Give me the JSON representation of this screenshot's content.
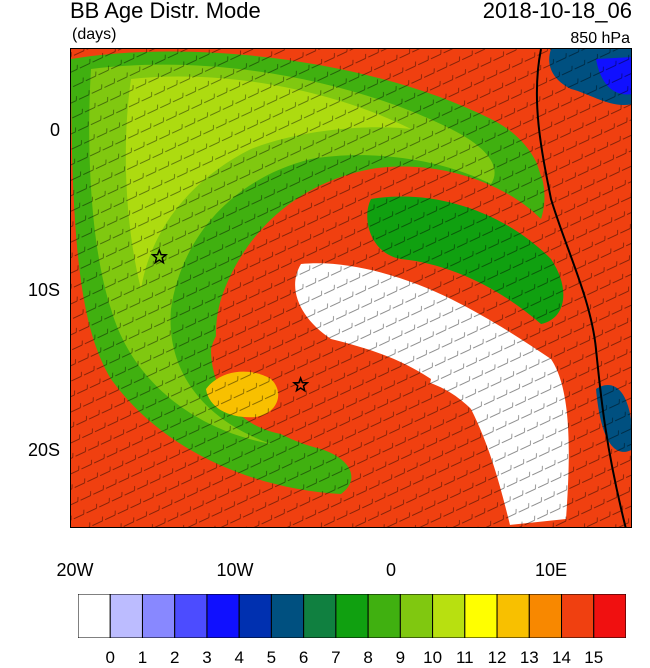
{
  "header": {
    "title": "BB Age Distr. Mode",
    "date": "2018-10-18_06",
    "units": "(days)",
    "level": "850 hPa"
  },
  "axes": {
    "x_ticks": [
      "20W",
      "10W",
      "0",
      "10E"
    ],
    "y_ticks": [
      "0",
      "10S",
      "20S"
    ]
  },
  "colorbar": {
    "labels": [
      "0",
      "1",
      "2",
      "3",
      "4",
      "5",
      "6",
      "7",
      "8",
      "9",
      "10",
      "11",
      "12",
      "13",
      "14",
      "15"
    ],
    "colors": [
      "#ffffff",
      "#bcbcff",
      "#8888ff",
      "#4c4cff",
      "#1010ff",
      "#0030b0",
      "#005080",
      "#108040",
      "#10a010",
      "#40b010",
      "#80c810",
      "#b8e010",
      "#ffff00",
      "#f8c000",
      "#f88800",
      "#f04010",
      "#f01010"
    ]
  },
  "markers": [
    {
      "name": "star-marker",
      "lon": -14.5,
      "lat": -8
    },
    {
      "name": "star-marker",
      "lon": -5.7,
      "lat": -16
    }
  ]
}
